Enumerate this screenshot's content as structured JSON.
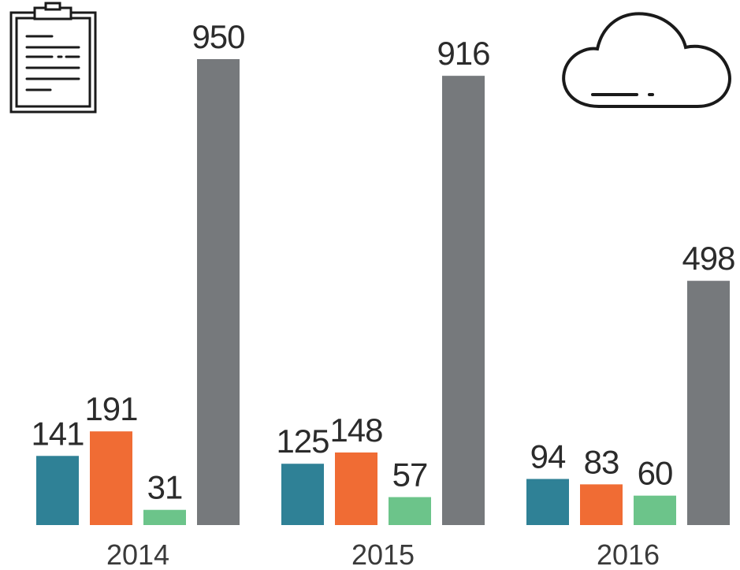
{
  "chart_data": {
    "type": "bar",
    "categories": [
      "2014",
      "2015",
      "2016"
    ],
    "series": [
      {
        "color": "#2f8196",
        "values": [
          141,
          125,
          94
        ]
      },
      {
        "color": "#f06c34",
        "values": [
          191,
          148,
          83
        ]
      },
      {
        "color": "#6cc48a",
        "values": [
          31,
          57,
          60
        ]
      },
      {
        "color": "#76797c",
        "values": [
          950,
          916,
          498
        ]
      }
    ]
  }
}
